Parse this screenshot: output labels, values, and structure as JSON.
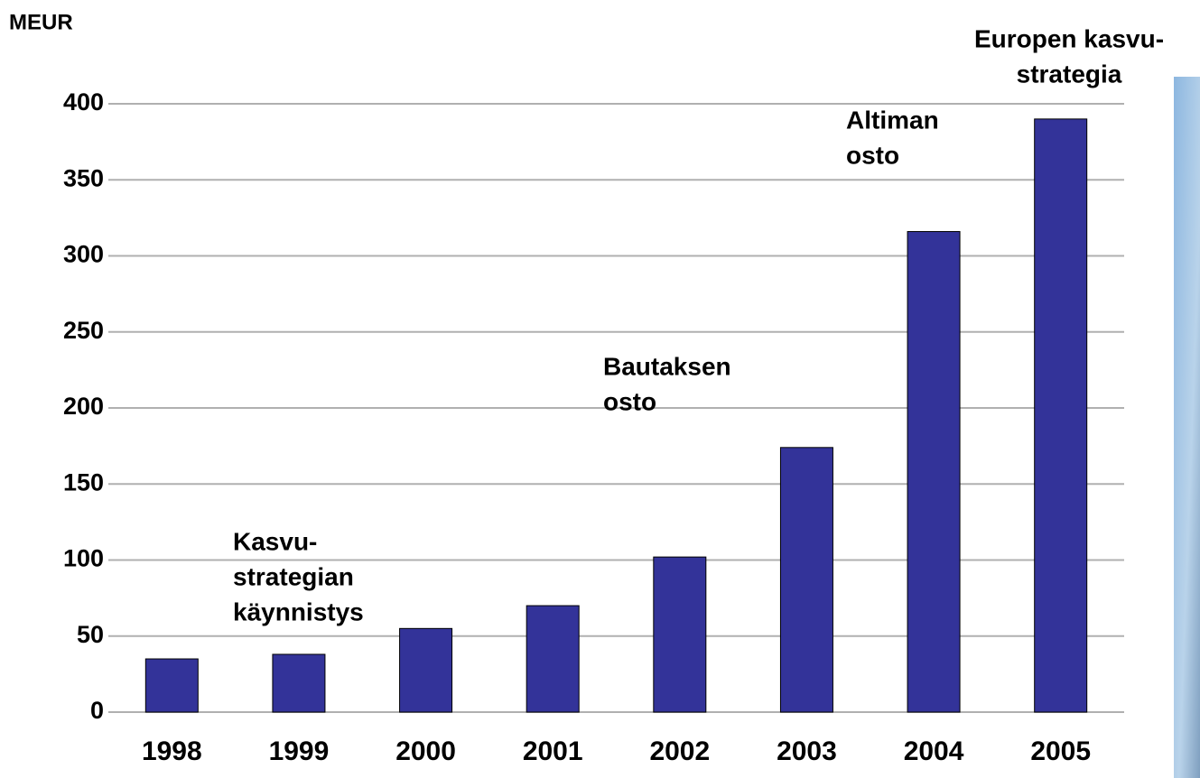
{
  "chart_data": {
    "type": "bar",
    "y_label": "MEUR",
    "categories": [
      "1998",
      "1999",
      "2000",
      "2001",
      "2002",
      "2003",
      "2004",
      "2005"
    ],
    "values": [
      35,
      38,
      55,
      70,
      102,
      174,
      316,
      390
    ],
    "color": "#333399",
    "ylim": [
      0,
      400
    ],
    "yticks": [
      0,
      50,
      100,
      150,
      200,
      250,
      300,
      350,
      400
    ],
    "grid": true,
    "annotations": [
      {
        "lines": [
          "Kasvu-",
          "strategian",
          "käynnistys"
        ]
      },
      {
        "lines": [
          "Bautaksen",
          "osto"
        ]
      },
      {
        "lines": [
          "Altiman",
          "osto"
        ]
      },
      {
        "lines": [
          "Europen kasvu-",
          "strategia"
        ]
      }
    ]
  }
}
